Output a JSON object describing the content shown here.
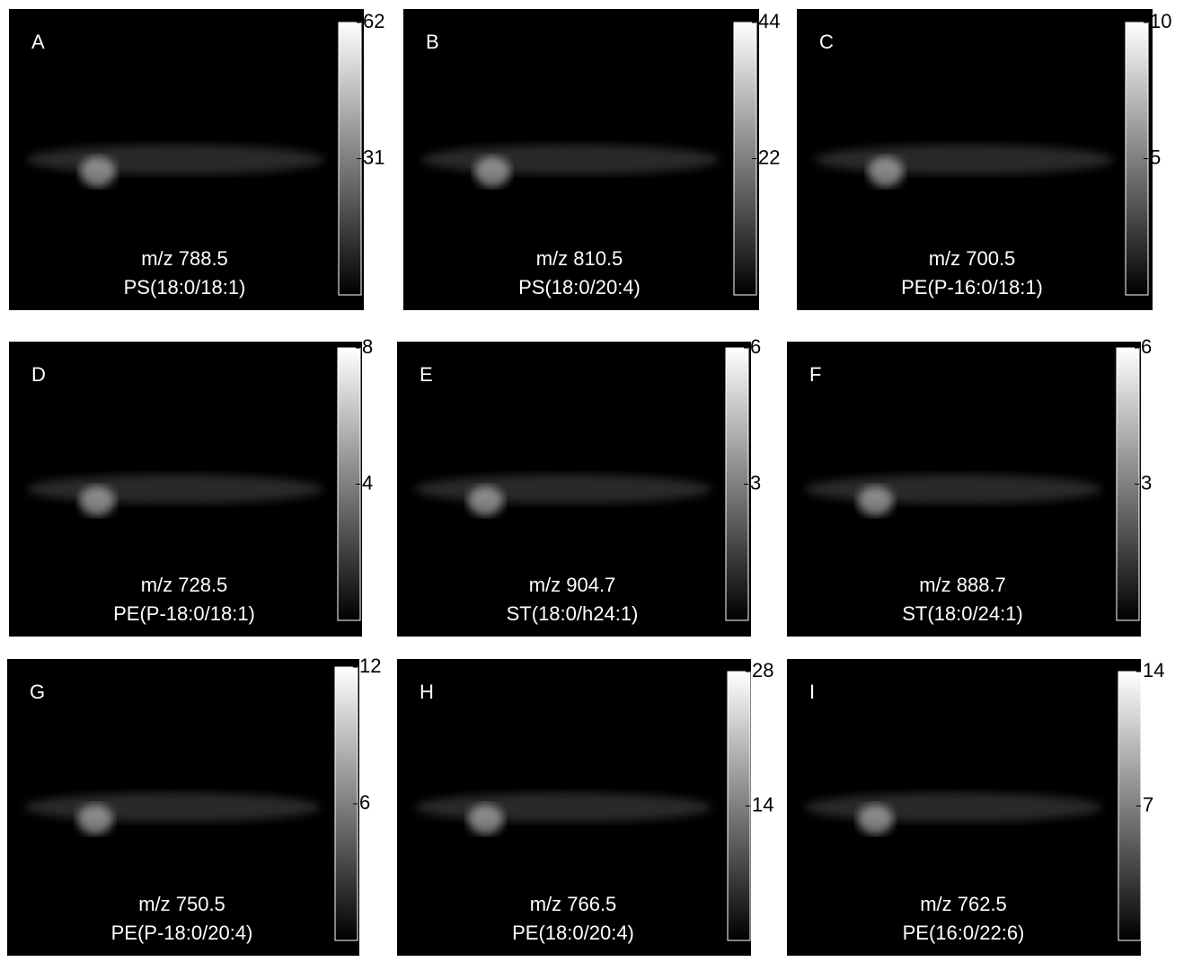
{
  "panels": [
    {
      "letter": "A",
      "mz": "m/z 788.5",
      "lipid": "PS(18:0/18:1)",
      "clim": [
        0,
        62
      ],
      "ticks": [
        62,
        31
      ]
    },
    {
      "letter": "B",
      "mz": "m/z 810.5",
      "lipid": "PS(18:0/20:4)",
      "clim": [
        0,
        44
      ],
      "ticks": [
        44,
        22
      ]
    },
    {
      "letter": "C",
      "mz": "m/z 700.5",
      "lipid": "PE(P-16:0/18:1)",
      "clim": [
        0,
        10
      ],
      "ticks": [
        10,
        5
      ]
    },
    {
      "letter": "D",
      "mz": "m/z 728.5",
      "lipid": "PE(P-18:0/18:1)",
      "clim": [
        0,
        8
      ],
      "ticks": [
        8,
        4
      ]
    },
    {
      "letter": "E",
      "mz": "m/z 904.7",
      "lipid": "ST(18:0/h24:1)",
      "clim": [
        0,
        6
      ],
      "ticks": [
        6,
        3
      ]
    },
    {
      "letter": "F",
      "mz": "m/z 888.7",
      "lipid": "ST(18:0/24:1)",
      "clim": [
        0,
        6
      ],
      "ticks": [
        6,
        3
      ]
    },
    {
      "letter": "G",
      "mz": "m/z 750.5",
      "lipid": "PE(P-18:0/20:4)",
      "clim": [
        0,
        12
      ],
      "ticks": [
        12,
        6
      ]
    },
    {
      "letter": "H",
      "mz": "m/z 766.5",
      "lipid": "PE(18:0/20:4)",
      "clim": [
        0,
        28
      ],
      "ticks": [
        28,
        14
      ]
    },
    {
      "letter": "I",
      "mz": "m/z 762.5",
      "lipid": "PE(16:0/22:6)",
      "clim": [
        0,
        14
      ],
      "ticks": [
        14,
        7
      ]
    }
  ]
}
